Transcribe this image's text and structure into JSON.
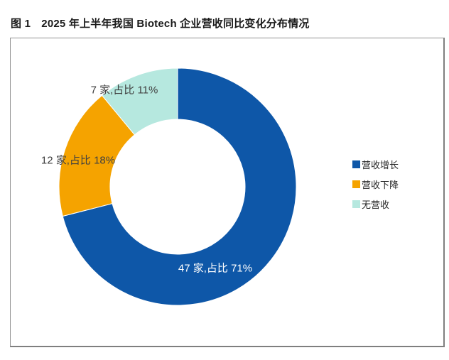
{
  "figure": {
    "title": "图 1　2025 年上半年我国 Biotech 企业营收同比变化分布情况"
  },
  "chart_data": {
    "type": "pie",
    "subtype": "donut",
    "title": "2025 年上半年我国 Biotech 企业营收同比变化分布情况",
    "legend_position": "right",
    "hole_ratio": 0.57,
    "start_angle_deg": 0,
    "direction": "clockwise",
    "series": [
      {
        "name": "营收增长",
        "count": 47,
        "percent": 71,
        "color": "#0E57A8",
        "data_label": "47 家,占比 71%",
        "label_color": "#FFFFFF"
      },
      {
        "name": "营收下降",
        "count": 12,
        "percent": 18,
        "color": "#F5A300",
        "data_label": "12 家,占比 18%",
        "label_color": "#404040"
      },
      {
        "name": "无营收",
        "count": 7,
        "percent": 11,
        "color": "#B6E8DF",
        "data_label": "7 家,占比 11%",
        "label_color": "#404040"
      }
    ]
  }
}
